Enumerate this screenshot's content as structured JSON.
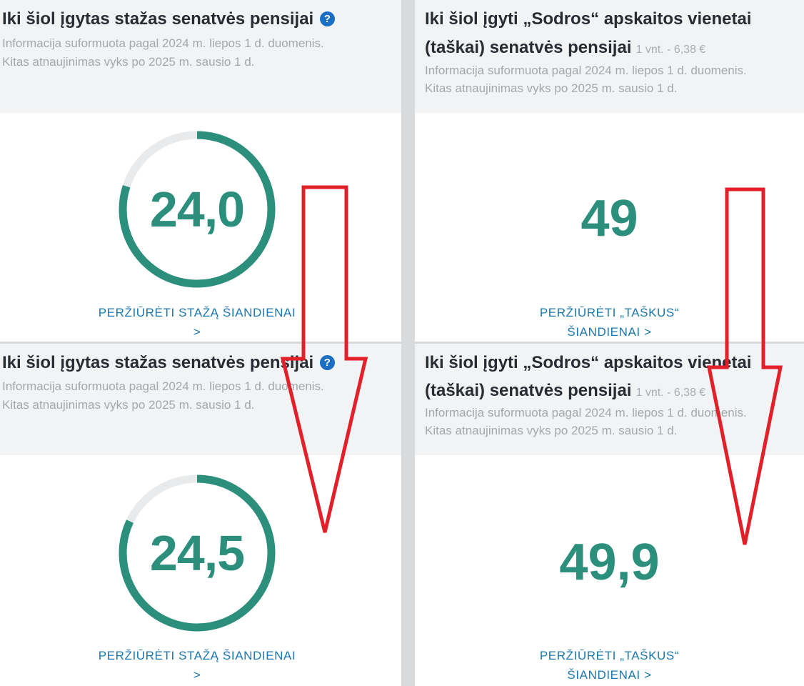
{
  "seniority_title": "Iki šiol įgytas stažas senatvės pensijai",
  "info_icon": "?",
  "points_title_line1": "Iki šiol įgyti „Sodros“ apskaitos vienetai",
  "points_title_line2": "(taškai) senatvės pensijai",
  "points_unit": "1 vnt. - 6,38 €",
  "info_line1": "Informacija suformuota pagal 2024 m. liepos 1 d. duomenis.",
  "info_line2": "Kitas atnaujinimas vyks po 2025 m. sausio 1 d.",
  "seniority_link_line1": "PERŽIŪRĖTI STAŽĄ ŠIANDIENAI",
  "seniority_link_line2": ">",
  "points_link_line1": "PERŽIŪRĖTI „TAŠKUS“",
  "points_link_line2": "ŠIANDIENAI >",
  "before": {
    "seniority_value": "24,0",
    "seniority_progress": 0.8,
    "points_value": "49"
  },
  "after": {
    "seniority_value": "24,5",
    "seniority_progress": 0.82,
    "points_value": "49,9"
  },
  "colors": {
    "accent_green": "#2b8f7c",
    "ring_track": "#e9eaec",
    "link_blue": "#1a77b0",
    "annotation_red": "#e2202a"
  }
}
